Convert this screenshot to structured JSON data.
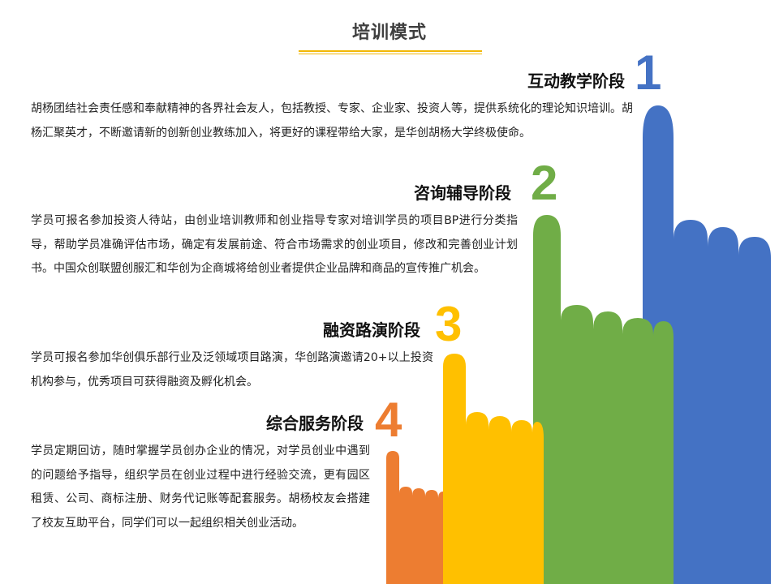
{
  "page": {
    "title": "培训模式"
  },
  "colors": {
    "accent_rule": "#f2b705",
    "stage1": "#4472c4",
    "stage2": "#70ad47",
    "stage3": "#ffc000",
    "stage4": "#ed7d31"
  },
  "stages": [
    {
      "number": "1",
      "heading": "互动教学阶段",
      "text": "胡杨团结社会责任感和奉献精神的各界社会友人，包括教授、专家、企业家、投资人等，提供系统化的理论知识培训。胡杨汇聚英才，不断邀请新的创新创业教练加入，将更好的课程带给大家，是华创胡杨大学终极使命。"
    },
    {
      "number": "2",
      "heading": "咨询辅导阶段",
      "text": "学员可报名参加投资人待站，由创业培训教师和创业指导专家对培训学员的项目BP进行分类指导，帮助学员准确评估市场，确定有发展前途、符合市场需求的创业项目，修改和完善创业计划书。中国众创联盟创服汇和华创为企商城将给创业者提供企业品牌和商品的宣传推广机会。"
    },
    {
      "number": "3",
      "heading": "融资路演阶段",
      "text": "学员可报名参加华创俱乐部行业及泛领域项目路演，华创路演邀请20+以上投资机构参与，优秀项目可获得融资及孵化机会。"
    },
    {
      "number": "4",
      "heading": "综合服务阶段",
      "text": "学员定期回访，随时掌握学员创办企业的情况，对学员创业中遇到的问题给予指导，组织学员在创业过程中进行经验交流，更有园区租赁、公司、商标注册、财务代记账等配套服务。胡杨校友会搭建了校友互助平台，同学们可以一起组织相关创业活动。"
    }
  ]
}
